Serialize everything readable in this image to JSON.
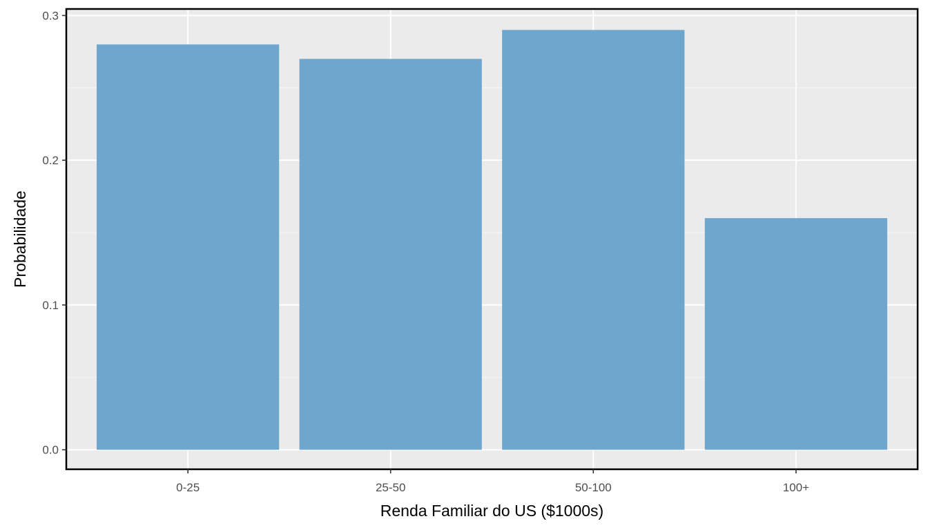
{
  "chart_data": {
    "type": "bar",
    "title": "",
    "xlabel": "Renda Familiar do US ($1000s)",
    "ylabel": "Probabilidade",
    "categories": [
      "0-25",
      "25-50",
      "50-100",
      "100+"
    ],
    "values": [
      0.28,
      0.27,
      0.29,
      0.16
    ],
    "ylim": [
      -0.0135,
      0.3045
    ],
    "yticks": [
      0.0,
      0.1,
      0.2,
      0.3
    ],
    "ytick_labels": [
      "0.0",
      "0.1",
      "0.2",
      "0.3"
    ],
    "grid": true,
    "legend": "none",
    "colors": {
      "bar": "#6fa6cd",
      "panel_background": "#ebebeb",
      "grid_major": "#ffffff",
      "grid_minor": "#f5f5f5",
      "panel_border": "#000000"
    }
  }
}
